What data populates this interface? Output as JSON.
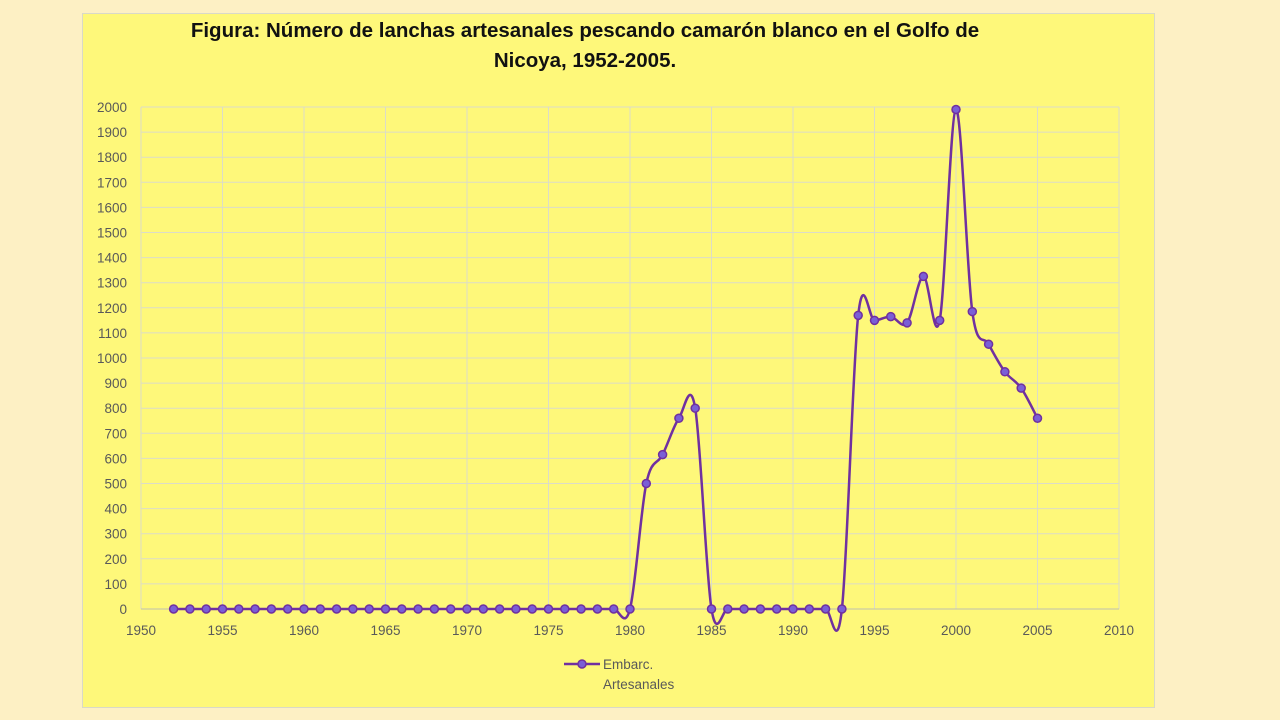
{
  "colors": {
    "page_background": "#fdf0c4",
    "chart_background": "#fef87a",
    "series_line": "#7030a0",
    "marker_fill": "#7a5fd6",
    "grid": "#dcdcc8",
    "axis_text": "#595959"
  },
  "chart_data": {
    "type": "line",
    "title_lines": [
      "Figura: Número de lanchas artesanales pescando camarón blanco en el Golfo de",
      "Nicoya, 1952-2005."
    ],
    "xlabel": "",
    "ylabel": "",
    "xlim": [
      1950,
      2010
    ],
    "ylim": [
      0,
      2000
    ],
    "x_ticks": [
      1950,
      1955,
      1960,
      1965,
      1970,
      1975,
      1980,
      1985,
      1990,
      1995,
      2000,
      2005,
      2010
    ],
    "y_ticks": [
      0,
      100,
      200,
      300,
      400,
      500,
      600,
      700,
      800,
      900,
      1000,
      1100,
      1200,
      1300,
      1400,
      1500,
      1600,
      1700,
      1800,
      1900,
      2000
    ],
    "grid": true,
    "smooth": true,
    "legend_position": "bottom",
    "series": [
      {
        "name": "Embarc. Artesanales",
        "legend_lines": [
          "Embarc.",
          "Artesanales"
        ],
        "x": [
          1952,
          1953,
          1954,
          1955,
          1956,
          1957,
          1958,
          1959,
          1960,
          1961,
          1962,
          1963,
          1964,
          1965,
          1966,
          1967,
          1968,
          1969,
          1970,
          1971,
          1972,
          1973,
          1974,
          1975,
          1976,
          1977,
          1978,
          1979,
          1980,
          1981,
          1982,
          1983,
          1984,
          1985,
          1986,
          1987,
          1988,
          1989,
          1990,
          1991,
          1992,
          1993,
          1994,
          1995,
          1996,
          1997,
          1998,
          1999,
          2000,
          2001,
          2002,
          2003,
          2004,
          2005
        ],
        "y": [
          0,
          0,
          0,
          0,
          0,
          0,
          0,
          0,
          0,
          0,
          0,
          0,
          0,
          0,
          0,
          0,
          0,
          0,
          0,
          0,
          0,
          0,
          0,
          0,
          0,
          0,
          0,
          0,
          0,
          500,
          615,
          760,
          800,
          0,
          0,
          0,
          0,
          0,
          0,
          0,
          0,
          0,
          1170,
          1150,
          1165,
          1140,
          1325,
          1150,
          1990,
          1185,
          1055,
          945,
          880,
          760
        ]
      }
    ]
  }
}
